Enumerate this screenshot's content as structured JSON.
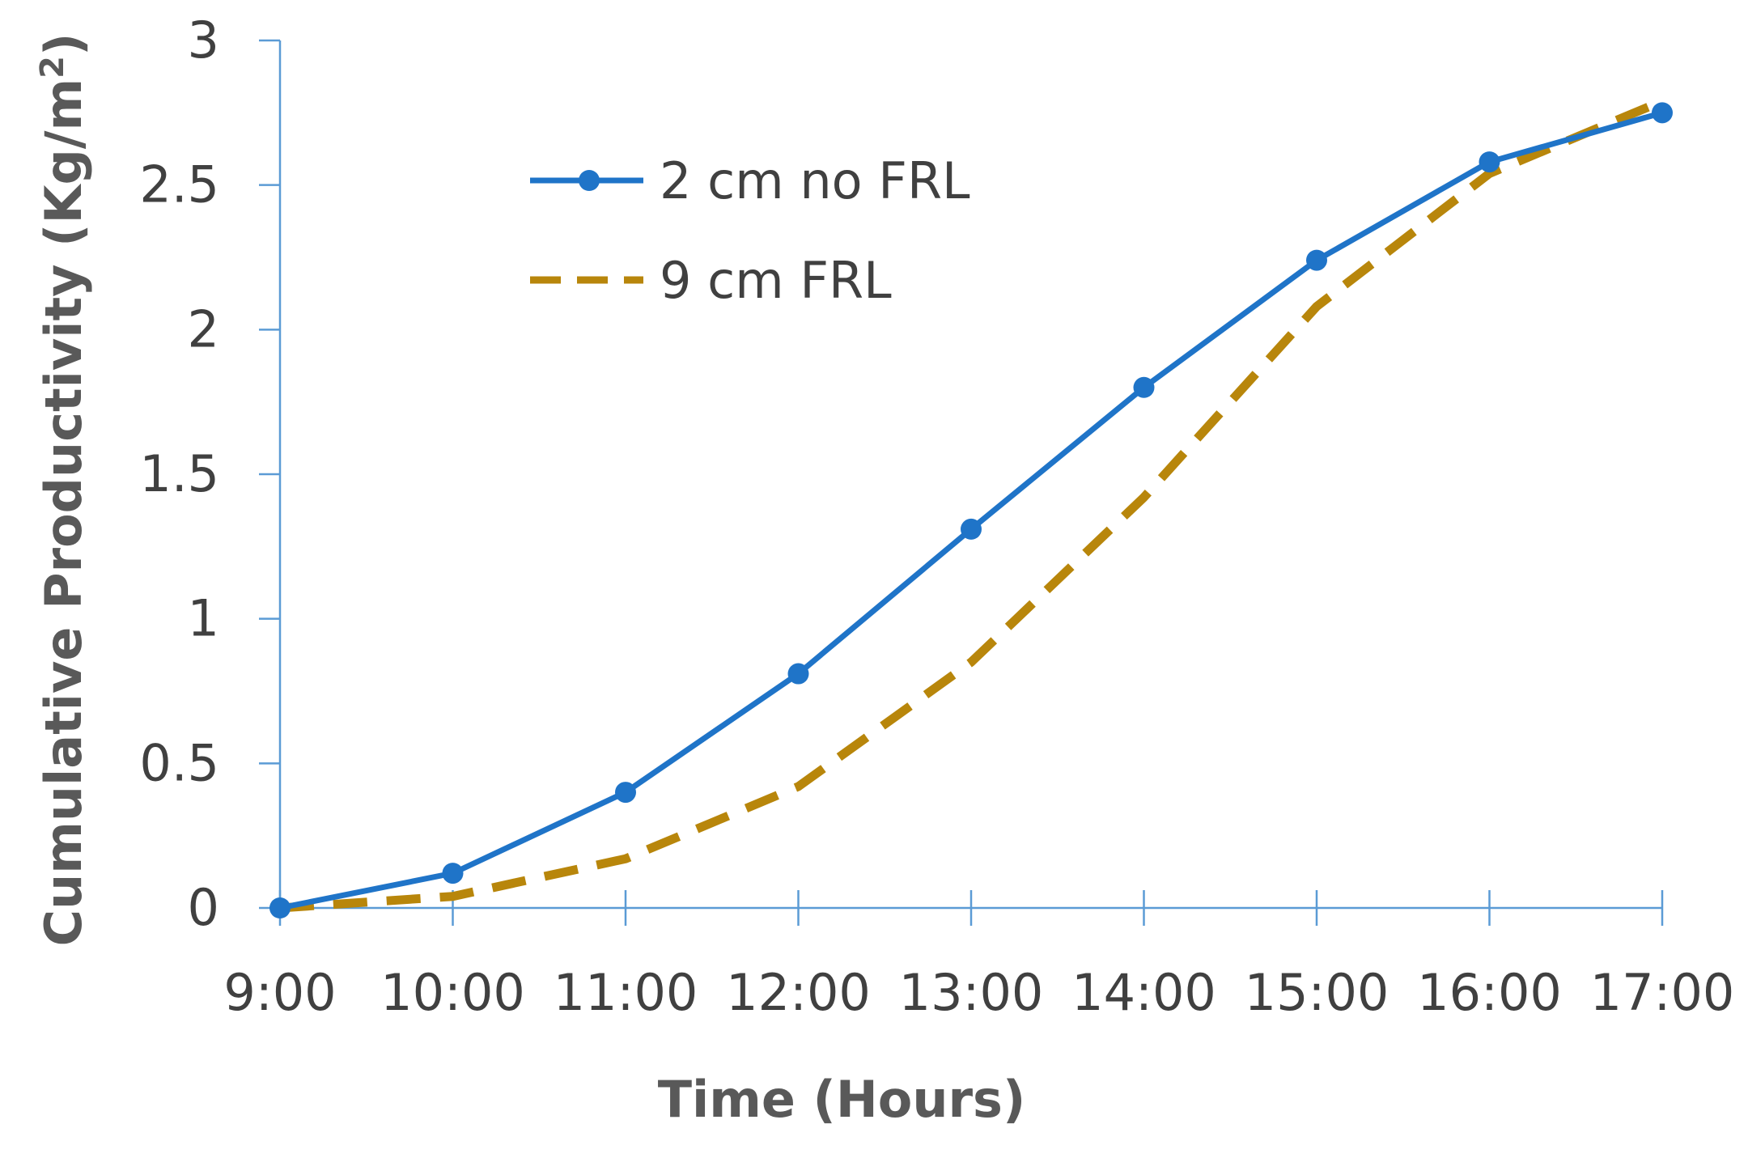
{
  "chart_data": {
    "type": "line",
    "title": "",
    "xlabel": "Time (Hours)",
    "ylabel": "Cumulative Productivity (Kg/m",
    "ylabel_sup": "2",
    "ylabel_close": ")",
    "categories": [
      "9:00",
      "10:00",
      "11:00",
      "12:00",
      "13:00",
      "14:00",
      "15:00",
      "16:00",
      "17:00"
    ],
    "ylim": [
      0,
      3
    ],
    "yticks": [
      "0",
      "0.5",
      "1",
      "1.5",
      "2",
      "2.5",
      "3"
    ],
    "grid": false,
    "legend_position": "top-left",
    "series": [
      {
        "name": "2 cm no FRL",
        "values": [
          0,
          0.12,
          0.4,
          0.81,
          1.31,
          1.8,
          2.24,
          2.58,
          2.75
        ],
        "color": "#1f74c8",
        "style": "solid",
        "marker": "circle"
      },
      {
        "name": "9 cm FRL",
        "values": [
          0,
          0.04,
          0.17,
          0.42,
          0.85,
          1.42,
          2.08,
          2.54,
          2.79
        ],
        "color": "#b8860b",
        "style": "dashed",
        "marker": "none"
      }
    ],
    "axis_color": "#5b9bd5"
  }
}
